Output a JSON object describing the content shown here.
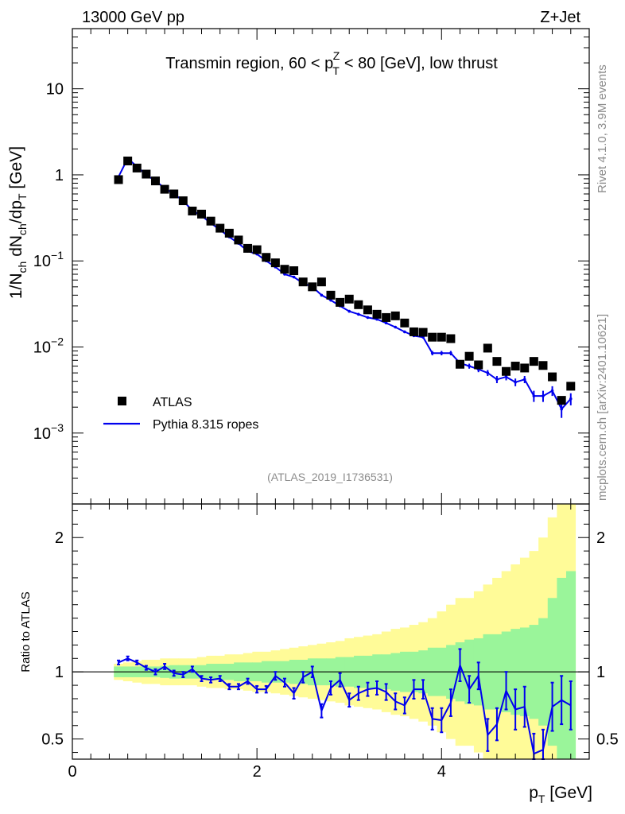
{
  "header": {
    "left": "13000 GeV pp",
    "right": "Z+Jet"
  },
  "side_labels": {
    "rivet": "Rivet 4.1.0,  3.9M events",
    "mcplots": "mcplots.cern.ch [arXiv:2401.10621]"
  },
  "colors": {
    "mc": "#0000ee",
    "band_inner": "#9af59a",
    "band_outer": "#fffb98",
    "data": "#000000"
  },
  "chart_data": [
    {
      "type": "scatter",
      "title": "Transmin region, 60 < pT^Z < 80 [GeV], low thrust",
      "title_parts": {
        "main": "Transmin region, 60 < p",
        "sup": "Z",
        "sub": "T",
        "tail": " < 80 [GeV], low thrust"
      },
      "analysis_tag": "(ATLAS_2019_I1736531)",
      "ylabel": "1/N_ch dN_ch/dp_T [GeV]",
      "ylabel_parts": {
        "a": "1/N",
        "a_sub": "ch",
        "b": " dN",
        "b_sub": "ch",
        "c": "/dp",
        "c_sub": "T",
        "d": " [GeV]"
      },
      "yscale": "log",
      "ylim": [
        0.00015,
        50
      ],
      "xlim": [
        0,
        5.6
      ],
      "ytick_labels": [
        {
          "base": "10",
          "exp": "−3",
          "value": 0.001
        },
        {
          "base": "10",
          "exp": "−2",
          "value": 0.01
        },
        {
          "base": "10",
          "exp": "−1",
          "value": 0.1
        },
        {
          "base": "1",
          "exp": "",
          "value": 1
        },
        {
          "base": "10",
          "exp": "",
          "value": 10
        }
      ],
      "legend": {
        "position": "bottom-left",
        "entries": [
          "ATLAS",
          "Pythia 8.315 ropes"
        ]
      },
      "x": [
        0.5,
        0.6,
        0.7,
        0.8,
        0.9,
        1.0,
        1.1,
        1.2,
        1.3,
        1.4,
        1.5,
        1.6,
        1.7,
        1.8,
        1.9,
        2.0,
        2.1,
        2.2,
        2.3,
        2.4,
        2.5,
        2.6,
        2.7,
        2.8,
        2.9,
        3.0,
        3.1,
        3.2,
        3.3,
        3.4,
        3.5,
        3.6,
        3.7,
        3.8,
        3.9,
        4.0,
        4.1,
        4.2,
        4.3,
        4.4,
        4.5,
        4.6,
        4.7,
        4.8,
        4.9,
        5.0,
        5.1,
        5.2,
        5.3,
        5.4
      ],
      "series": [
        {
          "name": "ATLAS",
          "values": [
            0.88,
            1.45,
            1.2,
            1.02,
            0.85,
            0.68,
            0.6,
            0.5,
            0.38,
            0.35,
            0.29,
            0.24,
            0.21,
            0.175,
            0.14,
            0.135,
            0.11,
            0.095,
            0.08,
            0.077,
            0.057,
            0.05,
            0.057,
            0.04,
            0.033,
            0.036,
            0.031,
            0.027,
            0.024,
            0.022,
            0.023,
            0.019,
            0.015,
            0.0148,
            0.013,
            0.013,
            0.0125,
            0.0063,
            0.0078,
            0.0062,
            0.0097,
            0.0068,
            0.0052,
            0.006,
            0.0057,
            0.0068,
            0.0061,
            0.0045,
            0.0024,
            0.0035
          ]
        },
        {
          "name": "Pythia 8.315 ropes",
          "values": [
            0.95,
            1.55,
            1.25,
            1.0,
            0.85,
            0.7,
            0.6,
            0.5,
            0.385,
            0.335,
            0.275,
            0.23,
            0.19,
            0.16,
            0.13,
            0.12,
            0.1,
            0.085,
            0.07,
            0.065,
            0.055,
            0.05,
            0.04,
            0.035,
            0.03,
            0.026,
            0.024,
            0.022,
            0.021,
            0.019,
            0.017,
            0.015,
            0.0135,
            0.013,
            0.0085,
            0.0085,
            0.0085,
            0.0065,
            0.006,
            0.0055,
            0.005,
            0.0042,
            0.0045,
            0.0039,
            0.0042,
            0.0027,
            0.0027,
            0.0031,
            0.0019,
            0.0025
          ],
          "errors": [
            0.02,
            0.03,
            0.02,
            0.02,
            0.015,
            0.012,
            0.01,
            0.008,
            0.006,
            0.005,
            0.004,
            0.004,
            0.003,
            0.003,
            0.0025,
            0.002,
            0.002,
            0.0015,
            0.0012,
            0.0011,
            0.001,
            0.0009,
            0.0008,
            0.0007,
            0.0006,
            0.0005,
            0.0005,
            0.0005,
            0.0005,
            0.0005,
            0.0004,
            0.0004,
            0.0004,
            0.0004,
            0.0005,
            0.0005,
            0.0005,
            0.0004,
            0.0004,
            0.0004,
            0.0004,
            0.0004,
            0.0004,
            0.0004,
            0.0004,
            0.0004,
            0.0004,
            0.0004,
            0.0004,
            0.0004
          ]
        }
      ]
    },
    {
      "type": "line",
      "ylabel": "Ratio to ATLAS",
      "xlabel": "p_T [GeV]",
      "xlabel_parts": {
        "main": "p",
        "sub": "T",
        "tail": " [GeV]"
      },
      "ylim": [
        0.35,
        2.25
      ],
      "xlim": [
        0,
        5.6
      ],
      "yticks": [
        0.5,
        1,
        2
      ],
      "ytick_labels": [
        "0.5",
        "1",
        "2"
      ],
      "xticks": [
        0,
        2,
        4
      ],
      "xtick_labels": [
        "0",
        "2",
        "4"
      ],
      "reference_line": 1,
      "x": [
        0.5,
        0.6,
        0.7,
        0.8,
        0.9,
        1.0,
        1.1,
        1.2,
        1.3,
        1.4,
        1.5,
        1.6,
        1.7,
        1.8,
        1.9,
        2.0,
        2.1,
        2.2,
        2.3,
        2.4,
        2.5,
        2.6,
        2.7,
        2.8,
        2.9,
        3.0,
        3.1,
        3.2,
        3.3,
        3.4,
        3.5,
        3.6,
        3.7,
        3.8,
        3.9,
        4.0,
        4.1,
        4.2,
        4.3,
        4.4,
        4.5,
        4.6,
        4.7,
        4.8,
        4.9,
        5.0,
        5.1,
        5.2,
        5.3,
        5.4
      ],
      "band_green": [
        0.04,
        0.04,
        0.04,
        0.04,
        0.04,
        0.045,
        0.05,
        0.05,
        0.05,
        0.05,
        0.06,
        0.06,
        0.06,
        0.07,
        0.07,
        0.07,
        0.08,
        0.08,
        0.08,
        0.09,
        0.09,
        0.1,
        0.1,
        0.1,
        0.11,
        0.11,
        0.12,
        0.12,
        0.13,
        0.13,
        0.14,
        0.15,
        0.15,
        0.16,
        0.18,
        0.18,
        0.2,
        0.22,
        0.24,
        0.25,
        0.28,
        0.28,
        0.3,
        0.32,
        0.33,
        0.35,
        0.4,
        0.55,
        0.7,
        0.75
      ],
      "band_yellow": [
        0.06,
        0.07,
        0.08,
        0.09,
        0.09,
        0.1,
        0.1,
        0.1,
        0.1,
        0.11,
        0.12,
        0.12,
        0.13,
        0.13,
        0.14,
        0.15,
        0.15,
        0.16,
        0.17,
        0.18,
        0.19,
        0.2,
        0.21,
        0.22,
        0.23,
        0.25,
        0.26,
        0.27,
        0.28,
        0.3,
        0.32,
        0.33,
        0.35,
        0.37,
        0.4,
        0.45,
        0.5,
        0.55,
        0.55,
        0.6,
        0.65,
        0.7,
        0.75,
        0.8,
        0.85,
        0.9,
        1.0,
        1.15,
        1.3,
        1.4
      ],
      "series": [
        {
          "name": "Pythia 8.315 ropes / ATLAS",
          "values": [
            1.07,
            1.1,
            1.07,
            1.03,
            1.0,
            1.04,
            0.99,
            0.98,
            1.02,
            0.95,
            0.94,
            0.95,
            0.89,
            0.89,
            0.93,
            0.87,
            0.87,
            0.97,
            0.92,
            0.84,
            0.96,
            1.0,
            0.71,
            0.88,
            0.94,
            0.79,
            0.84,
            0.87,
            0.88,
            0.85,
            0.78,
            0.75,
            0.87,
            0.87,
            0.65,
            0.64,
            0.77,
            1.05,
            0.87,
            0.97,
            0.53,
            0.61,
            0.86,
            0.72,
            0.74,
            0.39,
            0.42,
            0.74,
            0.79,
            0.75
          ],
          "errors": [
            0.015,
            0.015,
            0.015,
            0.015,
            0.02,
            0.02,
            0.02,
            0.02,
            0.02,
            0.02,
            0.02,
            0.02,
            0.02,
            0.02,
            0.02,
            0.025,
            0.025,
            0.03,
            0.03,
            0.04,
            0.04,
            0.04,
            0.05,
            0.05,
            0.05,
            0.05,
            0.05,
            0.05,
            0.05,
            0.06,
            0.06,
            0.06,
            0.07,
            0.07,
            0.08,
            0.09,
            0.1,
            0.12,
            0.1,
            0.1,
            0.12,
            0.12,
            0.14,
            0.15,
            0.15,
            0.15,
            0.15,
            0.18,
            0.18,
            0.18
          ]
        }
      ]
    }
  ]
}
